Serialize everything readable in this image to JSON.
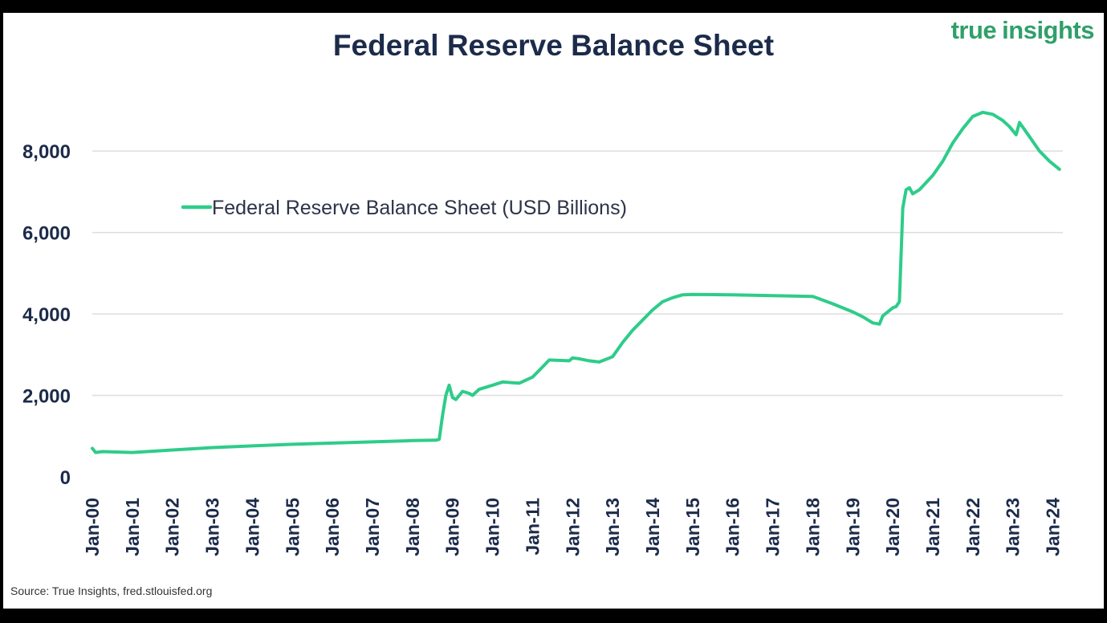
{
  "title": "Federal Reserve Balance Sheet",
  "brand": {
    "word1": "true",
    "word2": "insights",
    "color": "#2fa06a"
  },
  "source": "Source: True Insights, fred.stlouisfed.org",
  "colors": {
    "line": "#2ecc8a",
    "title": "#1c2b4a",
    "grid": "#dddddd",
    "background": "#ffffff",
    "frame": "#000000"
  },
  "chart_data": {
    "type": "line",
    "title": "Federal Reserve Balance Sheet",
    "xlabel": "",
    "ylabel": "",
    "ylim": [
      0,
      9500
    ],
    "yticks": [
      0,
      2000,
      4000,
      6000,
      8000
    ],
    "ytick_labels": [
      "0",
      "2,000",
      "4,000",
      "6,000",
      "8,000"
    ],
    "xlim": [
      2000.0,
      2024.25
    ],
    "xtick_labels": [
      "Jan-00",
      "Jan-01",
      "Jan-02",
      "Jan-03",
      "Jan-04",
      "Jan-05",
      "Jan-06",
      "Jan-07",
      "Jan-08",
      "Jan-09",
      "Jan-10",
      "Jan-11",
      "Jan-12",
      "Jan-13",
      "Jan-14",
      "Jan-15",
      "Jan-16",
      "Jan-17",
      "Jan-18",
      "Jan-19",
      "Jan-20",
      "Jan-21",
      "Jan-22",
      "Jan-23",
      "Jan-24"
    ],
    "grid": true,
    "legend_position": "upper-left",
    "series": [
      {
        "name": "Federal Reserve Balance Sheet (USD Billions)",
        "color": "#2ecc8a",
        "points": [
          [
            "Jan-00",
            700
          ],
          [
            "Feb-00",
            600
          ],
          [
            "Apr-00",
            620
          ],
          [
            "Jan-01",
            600
          ],
          [
            "Jan-02",
            660
          ],
          [
            "Jan-03",
            720
          ],
          [
            "Jan-04",
            760
          ],
          [
            "Jan-05",
            800
          ],
          [
            "Jan-06",
            830
          ],
          [
            "Jan-07",
            860
          ],
          [
            "Jan-08",
            890
          ],
          [
            "Aug-08",
            900
          ],
          [
            "Sep-08",
            920
          ],
          [
            "Oct-08",
            1500
          ],
          [
            "Nov-08",
            2000
          ],
          [
            "Dec-08",
            2250
          ],
          [
            "Jan-09",
            1950
          ],
          [
            "Feb-09",
            1900
          ],
          [
            "Apr-09",
            2100
          ],
          [
            "Jun-09",
            2050
          ],
          [
            "Jul-09",
            2000
          ],
          [
            "Sep-09",
            2150
          ],
          [
            "Jan-10",
            2250
          ],
          [
            "Apr-10",
            2330
          ],
          [
            "Sep-10",
            2300
          ],
          [
            "Jan-11",
            2450
          ],
          [
            "Apr-11",
            2700
          ],
          [
            "Jun-11",
            2870
          ],
          [
            "Dec-11",
            2850
          ],
          [
            "Jan-12",
            2920
          ],
          [
            "Mar-12",
            2900
          ],
          [
            "Jun-12",
            2850
          ],
          [
            "Sep-12",
            2820
          ],
          [
            "Jan-13",
            2950
          ],
          [
            "Apr-13",
            3300
          ],
          [
            "Jul-13",
            3600
          ],
          [
            "Oct-13",
            3850
          ],
          [
            "Jan-14",
            4100
          ],
          [
            "Apr-14",
            4300
          ],
          [
            "Jul-14",
            4400
          ],
          [
            "Oct-14",
            4470
          ],
          [
            "Jan-15",
            4480
          ],
          [
            "Jan-16",
            4470
          ],
          [
            "Jan-17",
            4450
          ],
          [
            "Jan-18",
            4430
          ],
          [
            "Jul-18",
            4250
          ],
          [
            "Jan-19",
            4050
          ],
          [
            "Apr-19",
            3930
          ],
          [
            "Jul-19",
            3780
          ],
          [
            "Sep-19",
            3750
          ],
          [
            "Oct-19",
            3950
          ],
          [
            "Jan-20",
            4150
          ],
          [
            "Feb-20",
            4180
          ],
          [
            "Mar-20",
            4300
          ],
          [
            "Apr-20",
            6600
          ],
          [
            "May-20",
            7050
          ],
          [
            "Jun-20",
            7100
          ],
          [
            "Jul-20",
            6950
          ],
          [
            "Sep-20",
            7050
          ],
          [
            "Jan-21",
            7400
          ],
          [
            "Apr-21",
            7750
          ],
          [
            "Jul-21",
            8200
          ],
          [
            "Oct-21",
            8550
          ],
          [
            "Jan-22",
            8850
          ],
          [
            "Apr-22",
            8950
          ],
          [
            "Jul-22",
            8900
          ],
          [
            "Oct-22",
            8750
          ],
          [
            "Dec-22",
            8600
          ],
          [
            "Feb-23",
            8400
          ],
          [
            "Mar-23",
            8700
          ],
          [
            "Jun-23",
            8350
          ],
          [
            "Sep-23",
            8000
          ],
          [
            "Dec-23",
            7750
          ],
          [
            "Mar-24",
            7550
          ]
        ]
      }
    ]
  }
}
